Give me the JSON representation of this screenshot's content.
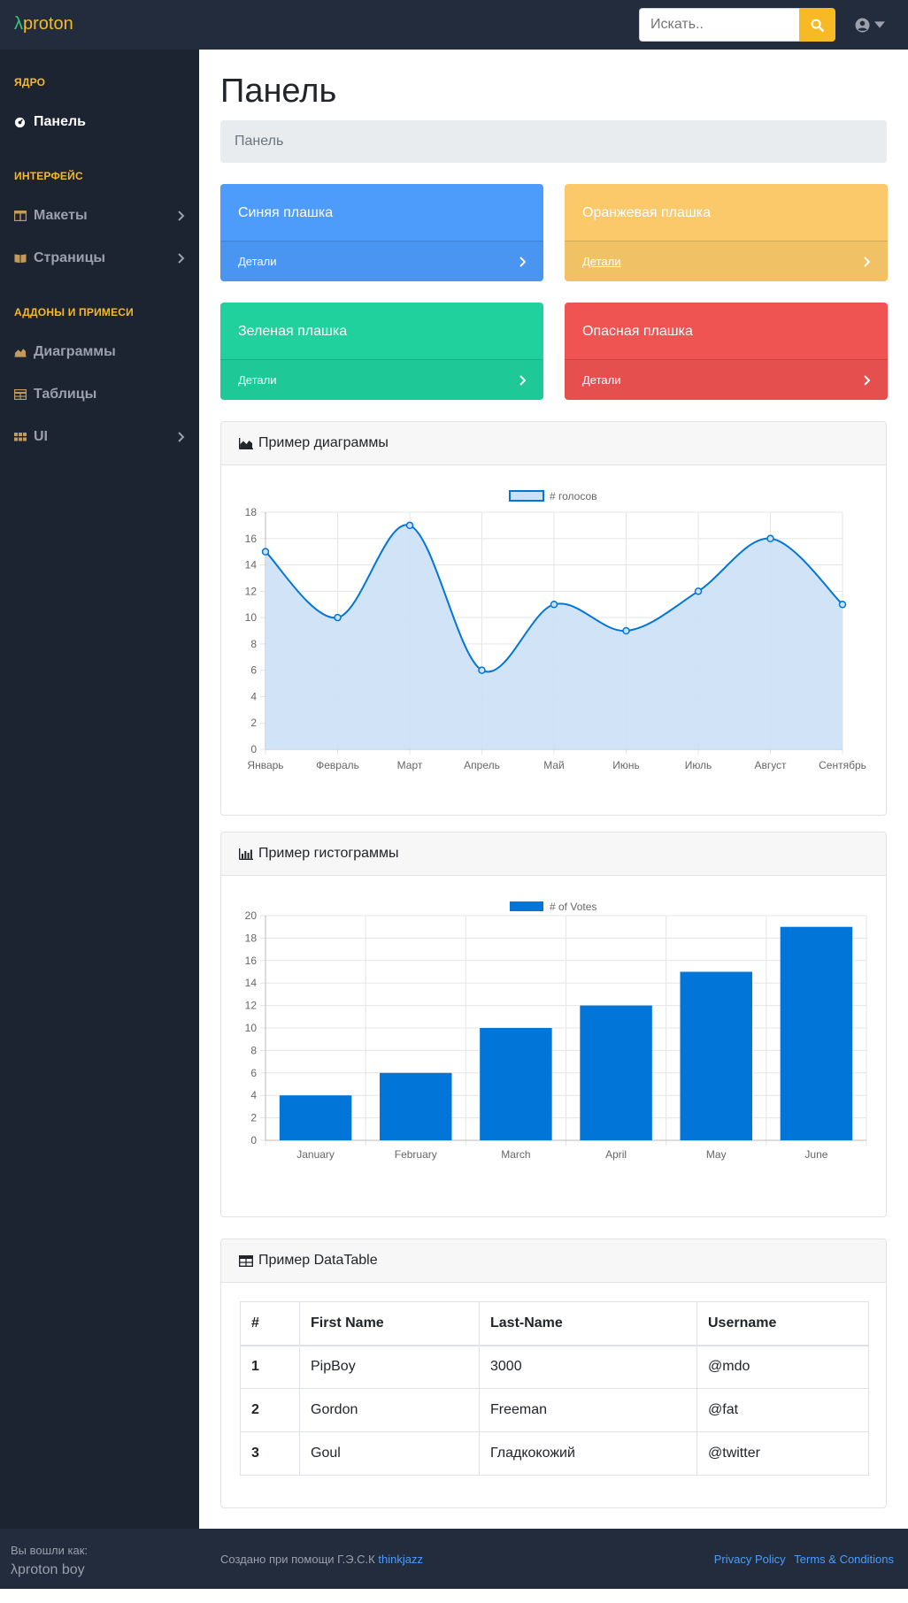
{
  "navbar": {
    "brand_symbol": "λ",
    "brand_name": "proton",
    "search_placeholder": "Искать.."
  },
  "sidebar": {
    "sections": [
      {
        "heading": "ЯДРО"
      },
      {
        "heading": "ИНТЕРФЕЙС"
      },
      {
        "heading": "АДДОНЫ И ПРИМЕСИ"
      }
    ],
    "items": [
      {
        "label": "Панель",
        "icon": "tachometer-icon"
      },
      {
        "label": "Макеты",
        "icon": "columns-icon"
      },
      {
        "label": "Страницы",
        "icon": "book-icon"
      },
      {
        "label": "Диаграммы",
        "icon": "area-chart-icon"
      },
      {
        "label": "Таблицы",
        "icon": "table-icon"
      },
      {
        "label": "UI",
        "icon": "grid-icon"
      }
    ],
    "footer_small": "Вы вошли как:",
    "footer_user": "λproton boy"
  },
  "main": {
    "title": "Панель",
    "breadcrumb": "Панель",
    "tiles": [
      {
        "title": "Синяя плашка",
        "link": "Детали",
        "color": "#4d9cfb"
      },
      {
        "title": "Оранжевая плашка",
        "link": "Детали",
        "color": "#fbc96a"
      },
      {
        "title": "Зеленая плашка",
        "link": "Детали",
        "color": "#20d19e"
      },
      {
        "title": "Опасная плашка",
        "link": "Детали",
        "color": "#ef5352"
      }
    ],
    "area_card_title": "Пример диаграммы",
    "bar_card_title": "Пример гистограммы",
    "table_card_title": "Пример DataTable",
    "table": {
      "headers": [
        "#",
        "First Name",
        "Last-Name",
        "Username"
      ],
      "rows": [
        [
          "1",
          "PipBoy",
          "3000",
          "@mdo"
        ],
        [
          "2",
          "Gordon",
          "Freeman",
          "@fat"
        ],
        [
          "3",
          "Goul",
          "Гладкокожий",
          "@twitter"
        ]
      ]
    }
  },
  "footer": {
    "credit": "Создано при помощи Г.Э.С.К",
    "credit_link": "thinkjazz",
    "privacy": "Privacy Policy",
    "terms": "Terms & Conditions"
  },
  "chart_data": [
    {
      "type": "area",
      "legend": "# голосов",
      "categories": [
        "Январь",
        "Февраль",
        "Март",
        "Апрель",
        "Май",
        "Июнь",
        "Июль",
        "Август",
        "Сентябрь"
      ],
      "series": [
        {
          "name": "# голосов",
          "values": [
            15,
            10,
            17,
            6,
            11,
            9,
            12,
            16,
            11
          ]
        }
      ],
      "ylim": [
        0,
        18
      ],
      "yticks": [
        0,
        2,
        4,
        6,
        8,
        10,
        12,
        14,
        16,
        18
      ],
      "grid": true,
      "legend_position": "top",
      "color": "#0275d8",
      "fill": "#cce1f6"
    },
    {
      "type": "bar",
      "legend": "# of Votes",
      "categories": [
        "January",
        "February",
        "March",
        "April",
        "May",
        "June"
      ],
      "series": [
        {
          "name": "# of Votes",
          "values": [
            4,
            6,
            10,
            12,
            15,
            19
          ]
        }
      ],
      "ylim": [
        0,
        20
      ],
      "yticks": [
        0,
        2,
        4,
        6,
        8,
        10,
        12,
        14,
        16,
        18,
        20
      ],
      "grid": true,
      "legend_position": "top",
      "color": "#0275d8"
    }
  ]
}
